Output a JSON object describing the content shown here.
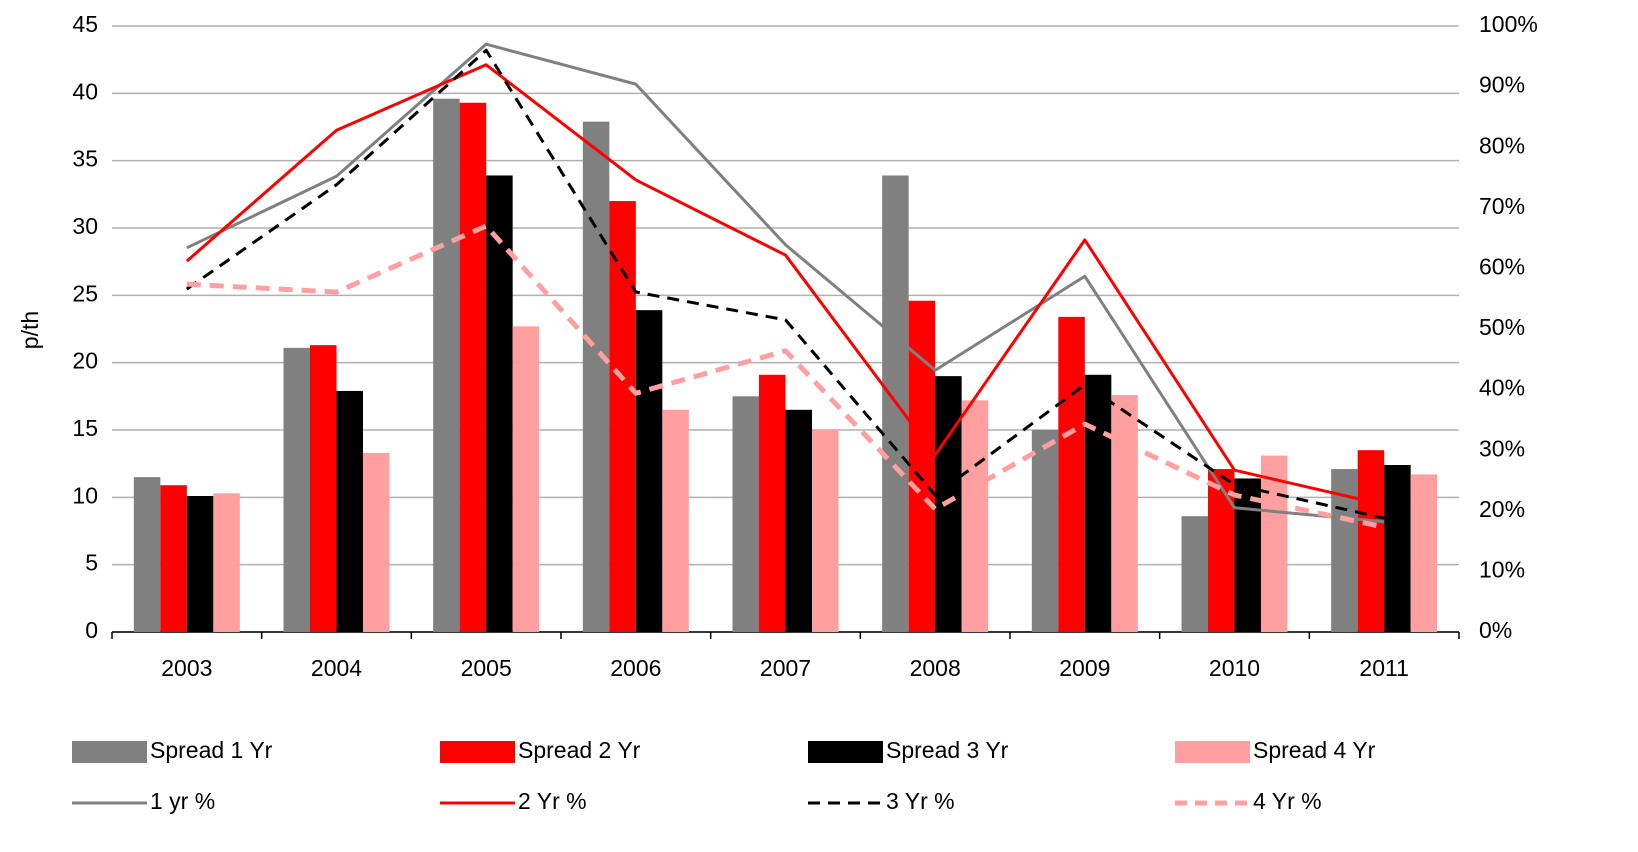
{
  "chart_data": {
    "type": "bar",
    "y_label": "p/th",
    "categories": [
      "2003",
      "2004",
      "2005",
      "2006",
      "2007",
      "2008",
      "2009",
      "2010",
      "2011"
    ],
    "ylim": [
      0,
      45
    ],
    "yticks": [
      0,
      5,
      10,
      15,
      20,
      25,
      30,
      35,
      40,
      45
    ],
    "y2lim": [
      0,
      100
    ],
    "y2ticks": [
      {
        "value": 0,
        "label": "0%"
      },
      {
        "value": 10,
        "label": "10%"
      },
      {
        "value": 20,
        "label": "20%"
      },
      {
        "value": 30,
        "label": "30%"
      },
      {
        "value": 40,
        "label": "40%"
      },
      {
        "value": 50,
        "label": "50%"
      },
      {
        "value": 60,
        "label": "60%"
      },
      {
        "value": 70,
        "label": "70%"
      },
      {
        "value": 80,
        "label": "80%"
      },
      {
        "value": 90,
        "label": "90%"
      },
      {
        "value": 100,
        "label": "100%"
      }
    ],
    "grid": true,
    "legend": "bottom",
    "series": [
      {
        "name": "Spread 1 Yr",
        "type": "bar",
        "color": "#808080",
        "values": [
          11.5,
          21.1,
          39.6,
          37.9,
          17.5,
          33.9,
          15.0,
          8.6,
          12.1
        ]
      },
      {
        "name": "Spread 2 Yr",
        "type": "bar",
        "color": "#ff0000",
        "values": [
          10.9,
          21.3,
          39.3,
          32.0,
          19.1,
          24.6,
          23.4,
          12.1,
          13.5
        ]
      },
      {
        "name": "Spread 3 Yr",
        "type": "bar",
        "color": "#000000",
        "values": [
          10.1,
          17.9,
          33.9,
          23.9,
          16.5,
          19.0,
          19.1,
          11.4,
          12.4
        ]
      },
      {
        "name": "Spread 4 Yr",
        "type": "bar",
        "color": "#ff9f9f",
        "values": [
          10.3,
          13.3,
          22.7,
          16.5,
          15.0,
          17.2,
          17.6,
          13.1,
          11.7
        ]
      },
      {
        "name": "1 yr %",
        "type": "line",
        "axis": "y2",
        "color": "#808080",
        "values": [
          63.4,
          75.2,
          97.0,
          90.4,
          63.9,
          43.2,
          58.7,
          20.5,
          18.2
        ]
      },
      {
        "name": "2 Yr %",
        "type": "line",
        "axis": "y2",
        "color": "#ff0000",
        "values": [
          61.2,
          82.8,
          93.6,
          74.6,
          62.2,
          29.2,
          64.7,
          26.7,
          21.0
        ]
      },
      {
        "name": "3 Yr %",
        "type": "line",
        "axis": "y2",
        "color": "#000000",
        "dashed": true,
        "values": [
          56.6,
          73.8,
          96.0,
          56.1,
          51.5,
          22.6,
          40.8,
          24.3,
          18.8
        ]
      },
      {
        "name": "4 Yr %",
        "type": "line",
        "axis": "y2",
        "color": "#ff9f9f",
        "dashed": true,
        "values": [
          57.4,
          56.1,
          67.0,
          39.4,
          46.4,
          20.3,
          34.3,
          22.6,
          17.3
        ]
      }
    ]
  }
}
